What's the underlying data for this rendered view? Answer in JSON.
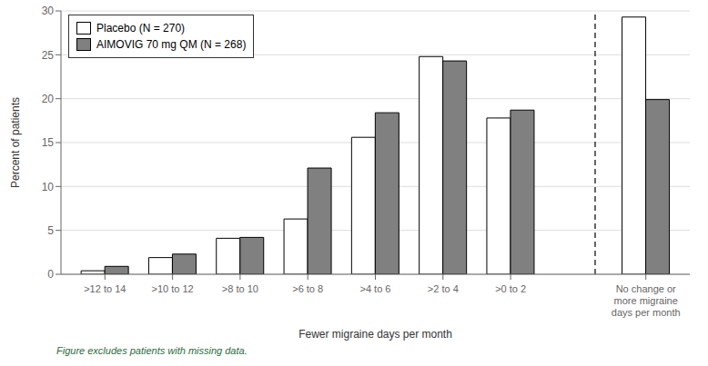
{
  "chart_data": {
    "type": "bar",
    "categories": [
      ">12 to 14",
      ">10 to 12",
      ">8 to 10",
      ">6 to 8",
      ">4 to 6",
      ">2 to 4",
      ">0 to 2",
      "No change or\nmore migraine\ndays per month"
    ],
    "series": [
      {
        "name": "Placebo (N = 270)",
        "color": "#ffffff",
        "values": [
          0.4,
          1.9,
          4.1,
          6.3,
          15.6,
          24.8,
          17.8,
          29.3
        ]
      },
      {
        "name": "AIMOVIG 70 mg QM (N = 268)",
        "color": "#808080",
        "values": [
          0.9,
          2.3,
          4.2,
          12.1,
          18.4,
          24.3,
          18.7,
          19.9
        ]
      }
    ],
    "xlabel": "Fewer migraine days per month",
    "ylabel": "Percent of patients",
    "ylim": [
      0,
      30
    ],
    "yticks": [
      0,
      5,
      10,
      15,
      20,
      25,
      30
    ],
    "grid": true,
    "legend": "upper left",
    "annotations": [
      "Figure excludes patients with missing data."
    ]
  }
}
